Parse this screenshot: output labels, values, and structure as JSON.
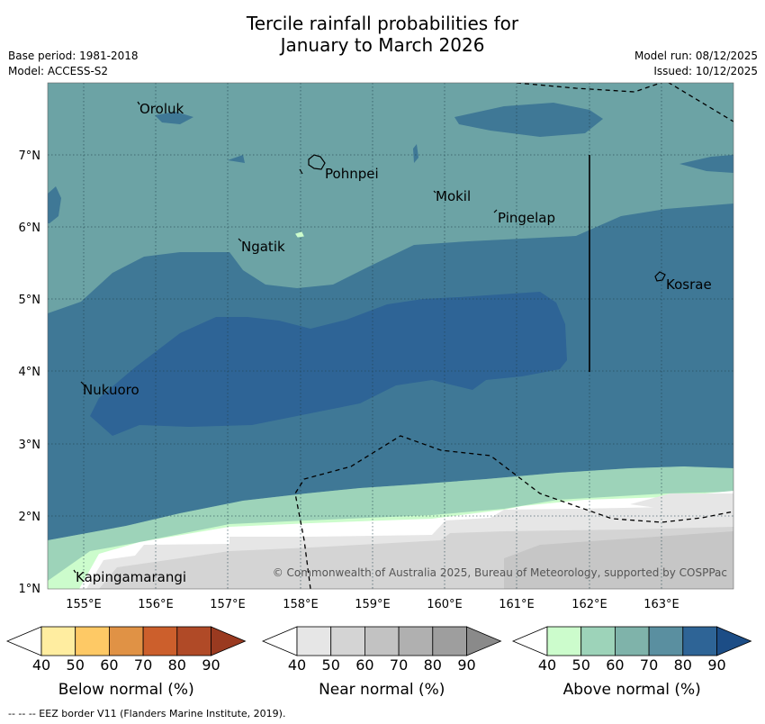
{
  "title_line1": "Tercile rainfall probabilities for",
  "title_line2": "January to March 2026",
  "meta": {
    "base_period": "Base period: 1981-2018",
    "model": "Model: ACCESS-S2",
    "model_run": "Model run: 08/12/2025",
    "issued": "Issued: 10/12/2025"
  },
  "map": {
    "lat_labels": [
      "7°N",
      "6°N",
      "5°N",
      "4°N",
      "3°N",
      "2°N",
      "1°N"
    ],
    "lon_labels": [
      "155°E",
      "156°E",
      "157°E",
      "158°E",
      "159°E",
      "160°E",
      "161°E",
      "162°E",
      "163°E"
    ],
    "places": [
      "Oroluk",
      "Pohnpei",
      "Mokil",
      "Pingelap",
      "Ngatik",
      "Kosrae",
      "Nukuoro",
      "Kapingamarangi"
    ],
    "copyright": "© Commonwealth of Australia 2025, Bureau of Meteorology, supported by COSPPac"
  },
  "colorbars": [
    {
      "name": "below",
      "title": "Below normal (%)",
      "ticks": [
        "40",
        "50",
        "60",
        "70",
        "80",
        "90"
      ],
      "colors": [
        "#ffffff",
        "#ffeda0",
        "#fec965",
        "#e09245",
        "#cc5f2c",
        "#b04a27",
        "#9a3a20"
      ]
    },
    {
      "name": "near",
      "title": "Near normal (%)",
      "ticks": [
        "40",
        "50",
        "60",
        "70",
        "80",
        "90"
      ],
      "colors": [
        "#ffffff",
        "#e6e6e6",
        "#d4d4d4",
        "#c2c2c2",
        "#b0b0b0",
        "#9e9e9e",
        "#8a8a8a"
      ]
    },
    {
      "name": "above",
      "title": "Above normal (%)",
      "ticks": [
        "40",
        "50",
        "60",
        "70",
        "80",
        "90"
      ],
      "colors": [
        "#ffffff",
        "#ccfccc",
        "#9dd3b9",
        "#7fb3aa",
        "#5a8fa0",
        "#2e6496",
        "#1c4d86"
      ]
    }
  ],
  "footer": "--  --  -- EEZ border V11 (Flanders Marine Institute, 2019)."
}
